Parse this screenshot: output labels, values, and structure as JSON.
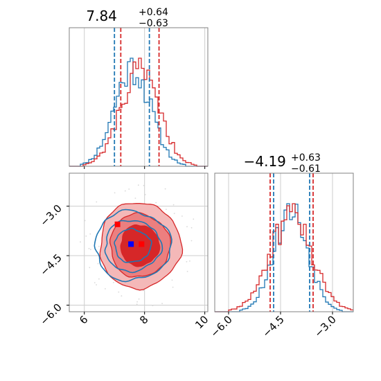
{
  "colors": {
    "blue": "#1f77b4",
    "red": "#d62728",
    "grid": "#cccccc",
    "axis": "#808080",
    "marker_red": "#ff0000",
    "marker_blue": "#0000ff"
  },
  "chart_data": [
    {
      "type": "histogram",
      "panel": "top-left",
      "title": {
        "value": "7.84",
        "plus": "+0.64",
        "minus": "−0.63"
      },
      "xlim": [
        5.5,
        10.1
      ],
      "x_ticks": [
        6,
        8,
        10
      ],
      "grid": true,
      "series": [
        {
          "color": "blue",
          "center": 7.6,
          "sigma": 0.6,
          "quantiles": [
            7.0,
            8.16
          ]
        },
        {
          "color": "red",
          "center": 7.84,
          "sigma": 0.64,
          "quantiles": [
            7.21,
            8.48
          ]
        }
      ]
    },
    {
      "type": "histogram",
      "panel": "bottom-right",
      "title": {
        "value": "−4.19",
        "plus": "+0.63",
        "minus": "−0.61"
      },
      "xlim": [
        -6.4,
        -2.4
      ],
      "x_ticks": [
        -6.0,
        -4.5,
        -3.0
      ],
      "x_tick_labels": [
        "−6.0",
        "−4.5",
        "−3.0"
      ],
      "grid": true,
      "series": [
        {
          "color": "blue",
          "center": -4.2,
          "sigma": 0.5,
          "quantiles": [
            -4.7,
            -3.66
          ]
        },
        {
          "color": "red",
          "center": -4.19,
          "sigma": 0.62,
          "quantiles": [
            -4.8,
            -3.56
          ]
        }
      ]
    },
    {
      "type": "contour",
      "panel": "bottom-left",
      "xlim": [
        5.5,
        10.1
      ],
      "ylim": [
        -6.2,
        -2.0
      ],
      "x_ticks": [
        6,
        8,
        10
      ],
      "y_ticks": [
        -3.0,
        -4.5,
        -6.0
      ],
      "y_tick_labels": [
        "−3.0",
        "−4.5",
        "−6.0"
      ],
      "grid": true,
      "series": [
        {
          "color": "red",
          "center": [
            7.84,
            -4.19
          ],
          "sigma": [
            0.64,
            0.62
          ],
          "filled": true
        },
        {
          "color": "blue",
          "center": [
            7.6,
            -4.2
          ],
          "sigma": [
            0.6,
            0.5
          ],
          "filled": false
        }
      ],
      "markers": [
        {
          "color": "marker_red",
          "x": 7.1,
          "y": -3.55
        },
        {
          "color": "marker_red",
          "x": 7.9,
          "y": -4.15
        },
        {
          "color": "marker_blue",
          "x": 7.55,
          "y": -4.15
        }
      ]
    }
  ]
}
